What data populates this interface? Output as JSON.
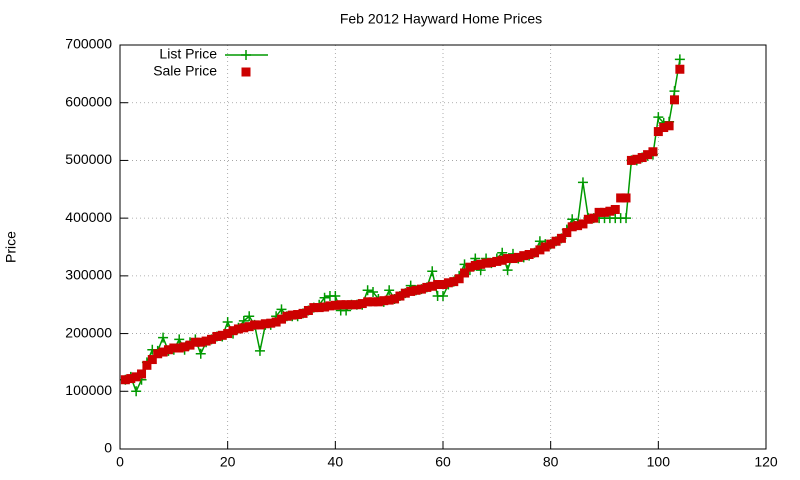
{
  "chart_data": {
    "type": "line",
    "title": "Feb 2012 Hayward Home Prices",
    "y_label": "Price",
    "x": [
      1,
      2,
      3,
      4,
      5,
      6,
      7,
      8,
      9,
      10,
      11,
      12,
      13,
      14,
      15,
      16,
      17,
      18,
      19,
      20,
      21,
      22,
      23,
      24,
      25,
      26,
      27,
      28,
      29,
      30,
      31,
      32,
      33,
      34,
      35,
      36,
      37,
      38,
      39,
      40,
      41,
      42,
      43,
      44,
      45,
      46,
      47,
      48,
      49,
      50,
      51,
      52,
      53,
      54,
      55,
      56,
      57,
      58,
      59,
      60,
      61,
      62,
      63,
      64,
      65,
      66,
      67,
      68,
      69,
      70,
      71,
      72,
      73,
      74,
      75,
      76,
      77,
      78,
      79,
      80,
      81,
      82,
      83,
      84,
      85,
      86,
      87,
      88,
      89,
      90,
      91,
      92,
      93,
      94,
      95,
      96,
      97,
      98,
      99,
      100,
      101,
      102,
      103,
      104
    ],
    "series": [
      {
        "name": "List Price",
        "color": "#009900",
        "marker": "plus",
        "values": [
          120000,
          125000,
          100000,
          120000,
          150000,
          172000,
          170000,
          193000,
          170000,
          172000,
          190000,
          172000,
          185000,
          190000,
          165000,
          185000,
          190000,
          195000,
          195000,
          220000,
          200000,
          210000,
          222000,
          230000,
          215000,
          170000,
          215000,
          215000,
          230000,
          242000,
          230000,
          230000,
          230000,
          235000,
          240000,
          245000,
          250000,
          262000,
          265000,
          265000,
          240000,
          240000,
          250000,
          250000,
          250000,
          275000,
          272000,
          260000,
          255000,
          275000,
          260000,
          265000,
          270000,
          283000,
          275000,
          277000,
          280000,
          308000,
          265000,
          265000,
          285000,
          290000,
          300000,
          320000,
          310000,
          330000,
          310000,
          330000,
          322000,
          330000,
          340000,
          310000,
          338000,
          330000,
          332000,
          335000,
          340000,
          360000,
          355000,
          355000,
          360000,
          365000,
          380000,
          398000,
          390000,
          462000,
          400000,
          400000,
          400000,
          400000,
          400000,
          400000,
          400000,
          400000,
          500000,
          500000,
          505000,
          508000,
          510000,
          575000,
          565000,
          567000,
          620000,
          675000
        ]
      },
      {
        "name": "Sale Price",
        "color": "#cc0000",
        "marker": "square",
        "values": [
          120000,
          122000,
          125000,
          130000,
          145000,
          155000,
          165000,
          168000,
          172000,
          175000,
          175000,
          177000,
          180000,
          185000,
          185000,
          187000,
          190000,
          195000,
          197000,
          200000,
          205000,
          208000,
          210000,
          212000,
          215000,
          215000,
          217000,
          218000,
          220000,
          225000,
          230000,
          232000,
          233000,
          235000,
          240000,
          245000,
          245000,
          246000,
          248000,
          249000,
          250000,
          250000,
          250000,
          250000,
          252000,
          255000,
          255000,
          255000,
          257000,
          258000,
          260000,
          265000,
          270000,
          273000,
          275000,
          277000,
          280000,
          282000,
          285000,
          285000,
          288000,
          290000,
          295000,
          305000,
          315000,
          318000,
          320000,
          322000,
          323000,
          325000,
          327000,
          330000,
          330000,
          332000,
          335000,
          337000,
          340000,
          345000,
          350000,
          355000,
          360000,
          365000,
          375000,
          385000,
          387000,
          390000,
          398000,
          400000,
          410000,
          410000,
          412000,
          415000,
          435000,
          435000,
          500000,
          502000,
          505000,
          510000,
          515000,
          550000,
          557000,
          560000,
          605000,
          658000
        ]
      }
    ],
    "xlim": [
      0,
      120
    ],
    "xticks": [
      0,
      20,
      40,
      60,
      80,
      100,
      120
    ],
    "ylim": [
      0,
      700000
    ],
    "yticks": [
      0,
      100000,
      200000,
      300000,
      400000,
      500000,
      600000,
      700000
    ],
    "grid": true,
    "legend": "top-left"
  }
}
